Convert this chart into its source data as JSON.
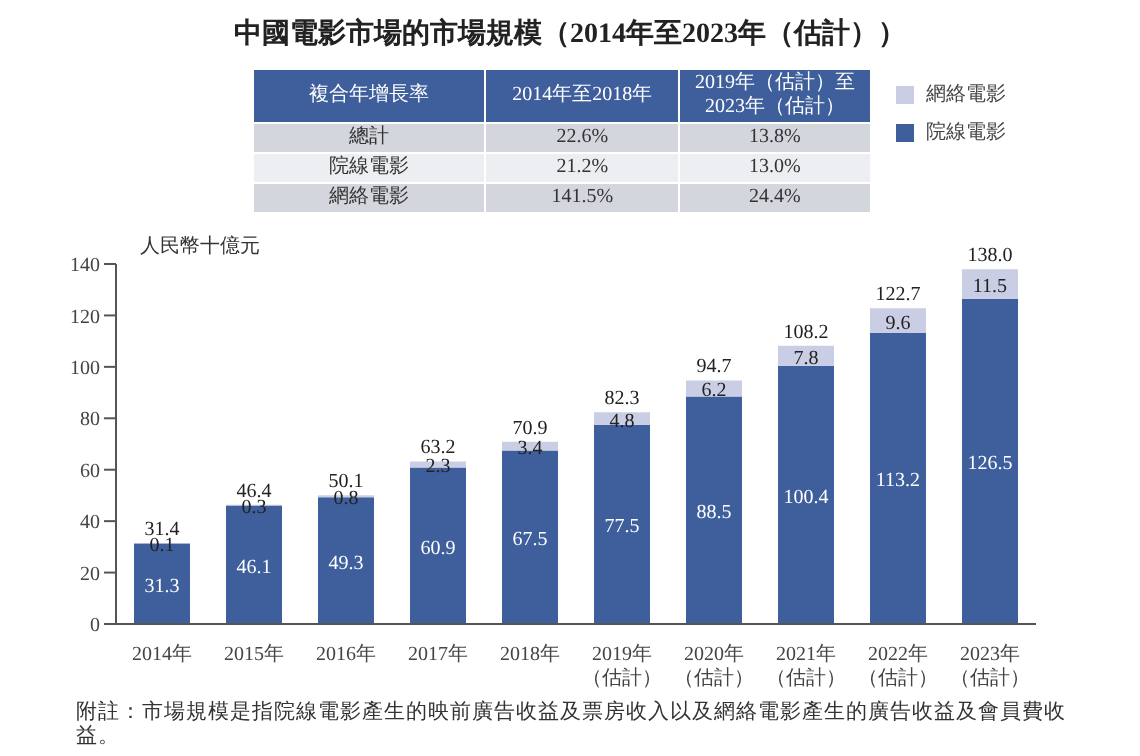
{
  "chart_data": {
    "type": "bar",
    "title": "中國電影市場的市場規模（2014年至2023年（估計））",
    "ylabel": "人民幣十億元",
    "categories": [
      "2014年",
      "2015年",
      "2016年",
      "2017年",
      "2018年",
      "2019年（估計）",
      "2020年（估計）",
      "2021年（估計）",
      "2022年（估計）",
      "2023年（估計）"
    ],
    "series": [
      {
        "name": "院線電影",
        "color": "#3e5f9b",
        "values": [
          31.3,
          46.1,
          49.3,
          60.9,
          67.5,
          77.5,
          88.5,
          100.4,
          113.2,
          126.5
        ]
      },
      {
        "name": "網絡電影",
        "color": "#c9cee4",
        "values": [
          0.1,
          0.3,
          0.8,
          2.3,
          3.4,
          4.8,
          6.2,
          7.8,
          9.6,
          11.5
        ]
      }
    ],
    "stacked": true,
    "data_labels": true,
    "totals": [
      "31.4",
      "46.4",
      "50.1",
      "63.2",
      "70.9",
      "82.3",
      "94.7",
      "108.2",
      "122.7",
      "138.0"
    ],
    "ylim": [
      0,
      140
    ],
    "yticks": [
      0,
      20,
      40,
      60,
      80,
      100,
      120,
      140
    ],
    "grid": false,
    "legend": "top right",
    "annotations": [
      "複合年增長率",
      "2014年至2018年",
      "2019年（估計）至2023年（估計）",
      "總計",
      "22.6%",
      "13.8%",
      "院線電影",
      "21.2%",
      "13.0%",
      "網絡電影",
      "141.5%",
      "24.4%",
      "附註：市場規模是指院線電影產生的映前廣告收益及票房收入以及網絡電影產生的廣告收益及會員費收益。"
    ]
  }
}
